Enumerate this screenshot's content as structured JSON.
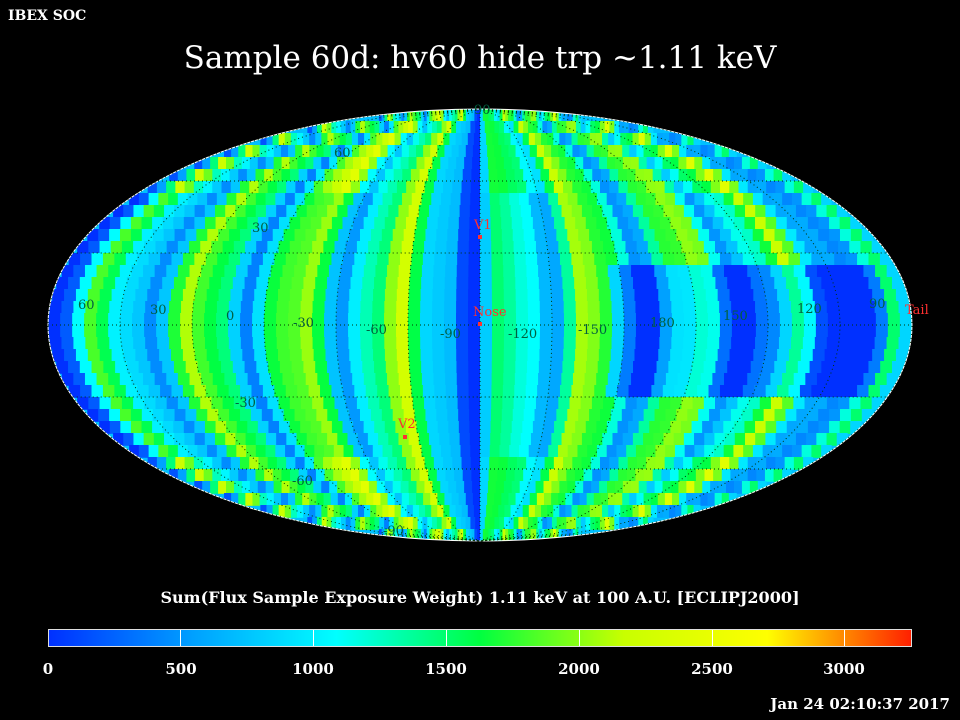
{
  "header": {
    "org_label": "IBEX SOC",
    "title": "Sample 60d: hv60 hide trp ~1.11 keV"
  },
  "map": {
    "lat_labels": [
      "60",
      "30",
      "0",
      "-30",
      "-60",
      "-90",
      "90"
    ],
    "lon_labels": [
      "60",
      "30",
      "0",
      "-30",
      "-60",
      "-90",
      "-120",
      "-150",
      "180",
      "150",
      "120",
      "90"
    ],
    "markers": [
      {
        "name": "V1",
        "color": "#ff3030"
      },
      {
        "name": "Nose",
        "color": "#ff3030"
      },
      {
        "name": "V2",
        "color": "#ff3030"
      },
      {
        "name": "Tail",
        "color": "#ff3030"
      }
    ],
    "grid_color": "#003300"
  },
  "colorbar": {
    "title": "Sum(Flux Sample Exposure Weight)  1.11 keV at 100 A.U. [ECLIPJ2000]",
    "ticks": [
      "0",
      "500",
      "1000",
      "1500",
      "2000",
      "2500",
      "3000"
    ],
    "min": 0,
    "max": 3250,
    "colors": [
      "#0030ff",
      "#00a0ff",
      "#00ffff",
      "#00ff40",
      "#c8ff00",
      "#ffff00",
      "#ff2000"
    ]
  },
  "footer": {
    "timestamp": "Jan 24 02:10:37 2017"
  }
}
